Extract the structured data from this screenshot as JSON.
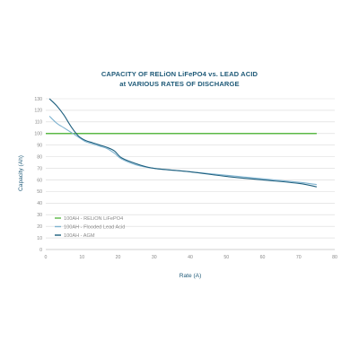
{
  "chart_data": {
    "type": "line",
    "title": "CAPACITY OF RELiON LiFePO4 vs. LEAD ACID",
    "subtitle": "at VARIOUS RATES OF DISCHARGE",
    "xlabel": "Rate (A)",
    "ylabel": "Capacity (Ah)",
    "xlim": [
      0,
      80
    ],
    "ylim": [
      0,
      130
    ],
    "xticks": [
      0,
      10,
      20,
      30,
      40,
      50,
      60,
      70,
      80
    ],
    "yticks": [
      0,
      10,
      20,
      30,
      40,
      50,
      60,
      70,
      80,
      90,
      100,
      110,
      120,
      130
    ],
    "xtick_labels": [
      "0",
      "10",
      "20",
      "30",
      "40",
      "50",
      "60",
      "70",
      "80"
    ],
    "ytick_labels": [
      "0",
      "10",
      "20",
      "30",
      "40",
      "50",
      "60",
      "70",
      "80",
      "90",
      "100",
      "110",
      "120",
      "130"
    ],
    "grid": "horizontal",
    "legend_position": "lower-left",
    "series": [
      {
        "name": "100AH - RELiON LiFePO4",
        "color": "#5cb947",
        "x": [
          0,
          75
        ],
        "y": [
          100,
          100
        ]
      },
      {
        "name": "100AH - Flooded Lead Acid",
        "color": "#7fb3d0",
        "x": [
          1,
          3,
          5,
          7,
          9,
          11,
          13,
          15,
          17,
          19,
          21,
          25,
          30,
          40,
          50,
          60,
          70,
          75
        ],
        "y": [
          115,
          109,
          105,
          101,
          97,
          93,
          91,
          89,
          87,
          83,
          78,
          73,
          70,
          67,
          64,
          61,
          58,
          56
        ]
      },
      {
        "name": "100AH - AGM",
        "color": "#1d5f7e",
        "x": [
          1,
          3,
          5,
          7,
          9,
          11,
          13,
          15,
          17,
          19,
          21,
          25,
          30,
          40,
          50,
          60,
          70,
          75
        ],
        "y": [
          130,
          124,
          116,
          106,
          98,
          94,
          92,
          90,
          88,
          85,
          79,
          74,
          70,
          67,
          63,
          60,
          57,
          54
        ]
      }
    ]
  }
}
